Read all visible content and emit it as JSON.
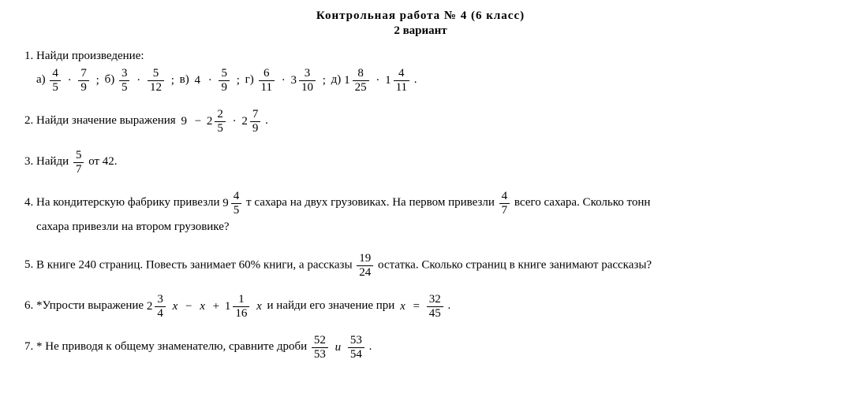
{
  "title": "Контрольная работа № 4 (6 класс)",
  "subtitle": "2 вариант",
  "p1": {
    "lead": "Найди произведение:",
    "a_label": "а)",
    "b_label": "б)",
    "v_label": "в)",
    "g_label": "г)",
    "d_label": "д)",
    "sep": ";",
    "dot": "·",
    "end": ".",
    "a_f1_num": "4",
    "a_f1_den": "5",
    "a_f2_num": "7",
    "a_f2_den": "9",
    "b_f1_num": "3",
    "b_f1_den": "5",
    "b_f2_num": "5",
    "b_f2_den": "12",
    "v_n": "4",
    "v_f_num": "5",
    "v_f_den": "9",
    "g_f1_num": "6",
    "g_f1_den": "11",
    "g_w": "3",
    "g_f2_num": "3",
    "g_f2_den": "10",
    "d_w1": "1",
    "d_f1_num": "8",
    "d_f1_den": "25",
    "d_w2": "1",
    "d_f2_num": "4",
    "d_f2_den": "11"
  },
  "p2": {
    "text": "Найди значение выражения",
    "nine": "9",
    "minus": "−",
    "dot": "·",
    "end": ".",
    "w1": "2",
    "f1_num": "2",
    "f1_den": "5",
    "w2": "2",
    "f2_num": "7",
    "f2_den": "9"
  },
  "p3": {
    "pre": "Найди",
    "f_num": "5",
    "f_den": "7",
    "post": "от 42.",
    "space": " "
  },
  "p4": {
    "pre": "На кондитерскую фабрику привезли",
    "w": "9",
    "f1_num": "4",
    "f1_den": "5",
    "mid1": " т сахара на двух грузовиках. На первом привезли ",
    "f2_num": "4",
    "f2_den": "7",
    "mid2": " всего сахара. Сколько тонн",
    "line2": "сахара привезли на втором грузовике?"
  },
  "p5": {
    "pre": "В книге 240 страниц. Повесть занимает 60% книги, а рассказы ",
    "f_num": "19",
    "f_den": "24",
    "post": " остатка. Сколько страниц в книге занимают рассказы?"
  },
  "p6": {
    "pre": "*Упрости выражение ",
    "w1": "2",
    "f1_num": "3",
    "f1_den": "4",
    "x": "x",
    "minus": "−",
    "plus": "+",
    "w2": "1",
    "f2_num": "1",
    "f2_den": "16",
    "mid": " и найди его значение при ",
    "eq": "=",
    "f3_num": "32",
    "f3_den": "45",
    "end": "."
  },
  "p7": {
    "pre": "* Не приводя к общему знаменателю, сравните дроби ",
    "f1_num": "52",
    "f1_den": "53",
    "and": "и",
    "f2_num": "53",
    "f2_den": "54",
    "end": "."
  }
}
